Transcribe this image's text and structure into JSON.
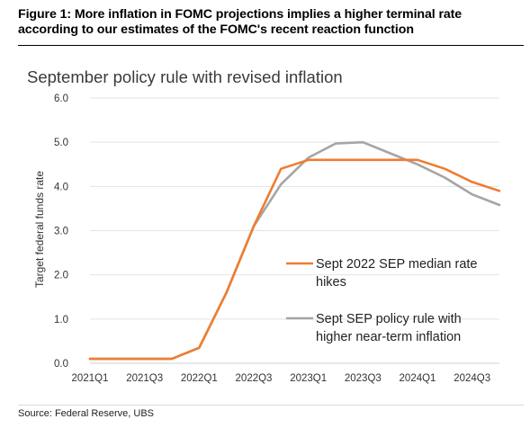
{
  "figure": {
    "title_line1": "Figure 1: More inflation in FOMC projections implies a higher terminal rate",
    "title_line2": "according to our estimates of the FOMC's recent reaction function",
    "source": "Source: Federal Reserve, UBS"
  },
  "chart_data": {
    "type": "line",
    "title": "September policy rule with revised inflation",
    "xlabel": "",
    "ylabel": "Target federal funds rate",
    "ylim": [
      0,
      6
    ],
    "yticks": [
      "0.0",
      "1.0",
      "2.0",
      "3.0",
      "4.0",
      "5.0",
      "6.0"
    ],
    "x": [
      "2021Q1",
      "2021Q2",
      "2021Q3",
      "2021Q4",
      "2022Q1",
      "2022Q2",
      "2022Q3",
      "2022Q4",
      "2023Q1",
      "2023Q2",
      "2023Q3",
      "2023Q4",
      "2024Q1",
      "2024Q2",
      "2024Q3",
      "2024Q4"
    ],
    "xtick_labels": [
      "2021Q1",
      "2021Q3",
      "2022Q1",
      "2022Q3",
      "2023Q1",
      "2023Q3",
      "2024Q1",
      "2024Q3"
    ],
    "grid": "horizontal",
    "legend_position": "right",
    "series": [
      {
        "name": "Sept 2022 SEP median rate hikes",
        "legend_lines": [
          "Sept 2022 SEP median rate",
          "hikes"
        ],
        "color": "#ED7D31",
        "values": [
          0.1,
          0.1,
          0.1,
          0.1,
          0.35,
          1.6,
          3.1,
          4.4,
          4.6,
          4.6,
          4.6,
          4.6,
          4.6,
          4.4,
          4.1,
          3.9
        ]
      },
      {
        "name": "Sept SEP policy rule with higher near-term inflation",
        "legend_lines": [
          "Sept SEP policy rule with",
          "higher near-term inflation"
        ],
        "color": "#A5A5A5",
        "values": [
          0.1,
          0.1,
          0.1,
          0.1,
          0.35,
          1.6,
          3.1,
          4.05,
          4.65,
          4.97,
          5.0,
          4.75,
          4.5,
          4.2,
          3.82,
          3.58
        ]
      }
    ]
  }
}
